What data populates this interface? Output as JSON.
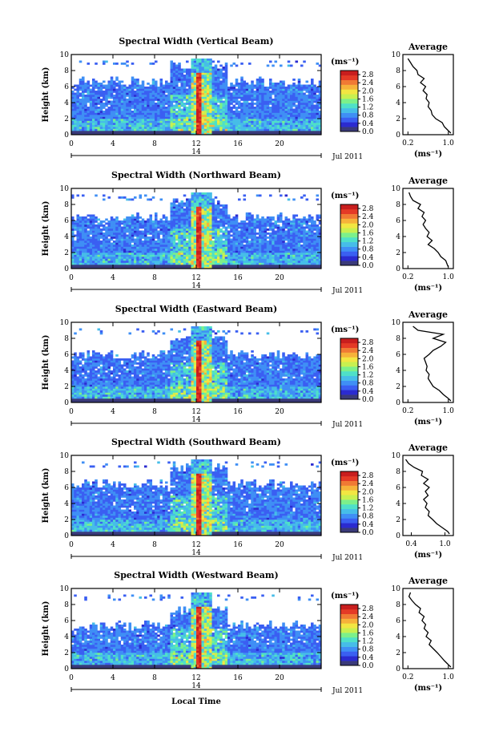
{
  "figure": {
    "xlabel": "Local Time",
    "date_label": "Jul 2011",
    "day_label": "14",
    "unit_label": "(ms⁻¹)",
    "avg_title": "Average"
  },
  "colors": {
    "colormap": [
      "#3a3a7a",
      "#2b2bd0",
      "#3a5ff2",
      "#3f8ff5",
      "#46bde8",
      "#4fe0c8",
      "#7cf08a",
      "#c8f050",
      "#f2e642",
      "#f6b23a",
      "#f07a34",
      "#e43a26",
      "#c81e1e"
    ],
    "bar_bottom": "#3a3a7a"
  },
  "chart_data": [
    {
      "type": "heatmap",
      "title": "Spectral Width (Vertical Beam)",
      "xlabel": "Local Time",
      "ylabel": "Height (km)",
      "xlim": [
        0,
        24
      ],
      "ylim": [
        0,
        10
      ],
      "x_ticks": [
        "0",
        "4",
        "8",
        "12",
        "16",
        "20"
      ],
      "y_ticks": [
        "0",
        "2",
        "4",
        "6",
        "8",
        "10"
      ],
      "colorbar": {
        "label": "(ms⁻¹)",
        "ticks": [
          "0.0",
          "0.4",
          "0.8",
          "1.2",
          "1.6",
          "2.0",
          "2.4",
          "2.8"
        ],
        "range": [
          0,
          3.0
        ]
      },
      "features": {
        "convection_hours": [
          11.5,
          13.5
        ],
        "cloud_top_km": 6.6
      },
      "average": {
        "title": "Average",
        "xlabel": "(ms⁻¹)",
        "xlim": [
          0.1,
          1.1
        ],
        "x_ticks": [
          "0.2",
          "1.0"
        ],
        "y_ticks": [
          "0",
          "2",
          "4",
          "6",
          "8",
          "10"
        ],
        "height_km": [
          0.2,
          0.5,
          1,
          1.5,
          2,
          2.5,
          3,
          3.5,
          4,
          4.5,
          5,
          5.5,
          6,
          6.5,
          7,
          7.5,
          8,
          8.5,
          9,
          9.5
        ],
        "values": [
          1.05,
          1.0,
          0.92,
          0.88,
          0.75,
          0.68,
          0.66,
          0.6,
          0.62,
          0.56,
          0.58,
          0.5,
          0.55,
          0.45,
          0.52,
          0.4,
          0.38,
          0.3,
          0.25,
          0.2
        ]
      }
    },
    {
      "type": "heatmap",
      "title": "Spectral Width (Northward Beam)",
      "xlabel": "Local Time",
      "ylabel": "Height (km)",
      "xlim": [
        0,
        24
      ],
      "ylim": [
        0,
        10
      ],
      "x_ticks": [
        "0",
        "4",
        "8",
        "12",
        "16",
        "20"
      ],
      "y_ticks": [
        "0",
        "2",
        "4",
        "6",
        "8",
        "10"
      ],
      "colorbar": {
        "label": "(ms⁻¹)",
        "ticks": [
          "0.0",
          "0.4",
          "0.8",
          "1.2",
          "1.6",
          "2.0",
          "2.4",
          "2.8"
        ],
        "range": [
          0,
          3.0
        ]
      },
      "features": {
        "convection_hours": [
          11.5,
          13.5
        ],
        "cloud_top_km": 6.4
      },
      "average": {
        "title": "Average",
        "xlabel": "(ms⁻¹)",
        "xlim": [
          0.1,
          1.1
        ],
        "x_ticks": [
          "0.2",
          "1.0"
        ],
        "y_ticks": [
          "0",
          "2",
          "4",
          "6",
          "8",
          "10"
        ],
        "height_km": [
          0.2,
          0.5,
          1,
          1.5,
          2,
          2.5,
          3,
          3.5,
          4,
          4.5,
          5,
          5.5,
          6,
          6.5,
          7,
          7.5,
          8,
          8.5,
          9,
          9.5
        ],
        "values": [
          1.0,
          0.98,
          0.95,
          0.85,
          0.8,
          0.72,
          0.6,
          0.68,
          0.58,
          0.62,
          0.55,
          0.5,
          0.55,
          0.48,
          0.52,
          0.4,
          0.45,
          0.3,
          0.25,
          0.22
        ]
      }
    },
    {
      "type": "heatmap",
      "title": "Spectral Width (Eastward Beam)",
      "xlabel": "Local Time",
      "ylabel": "Height (km)",
      "xlim": [
        0,
        24
      ],
      "ylim": [
        0,
        10
      ],
      "x_ticks": [
        "0",
        "4",
        "8",
        "12",
        "16",
        "20"
      ],
      "y_ticks": [
        "0",
        "2",
        "4",
        "6",
        "8",
        "10"
      ],
      "colorbar": {
        "label": "(ms⁻¹)",
        "ticks": [
          "0.0",
          "0.4",
          "0.8",
          "1.2",
          "1.6",
          "2.0",
          "2.4",
          "2.8"
        ],
        "range": [
          0,
          3.0
        ]
      },
      "features": {
        "convection_hours": [
          11.5,
          13.5
        ],
        "cloud_top_km": 6.0
      },
      "average": {
        "title": "Average",
        "xlabel": "(ms⁻¹)",
        "xlim": [
          0.1,
          1.1
        ],
        "x_ticks": [
          "0.2",
          "1.0"
        ],
        "y_ticks": [
          "0",
          "2",
          "4",
          "6",
          "8",
          "10"
        ],
        "height_km": [
          0.2,
          0.5,
          1,
          1.5,
          2,
          2.5,
          3,
          3.5,
          4,
          4.5,
          5,
          5.5,
          6,
          6.5,
          7,
          7.5,
          8,
          8.5,
          9,
          9.5
        ],
        "values": [
          1.05,
          1.0,
          0.9,
          0.82,
          0.7,
          0.65,
          0.6,
          0.62,
          0.56,
          0.58,
          0.55,
          0.52,
          0.62,
          0.7,
          0.85,
          0.95,
          0.7,
          0.9,
          0.4,
          0.3
        ]
      }
    },
    {
      "type": "heatmap",
      "title": "Spectral Width (Southward Beam)",
      "xlabel": "Local Time",
      "ylabel": "Height (km)",
      "xlim": [
        0,
        24
      ],
      "ylim": [
        0,
        10
      ],
      "x_ticks": [
        "0",
        "4",
        "8",
        "12",
        "16",
        "20"
      ],
      "y_ticks": [
        "0",
        "2",
        "4",
        "6",
        "8",
        "10"
      ],
      "colorbar": {
        "label": "(ms⁻¹)",
        "ticks": [
          "0.0",
          "0.4",
          "0.8",
          "1.2",
          "1.6",
          "2.0",
          "2.4",
          "2.8"
        ],
        "range": [
          0,
          3.0
        ]
      },
      "features": {
        "convection_hours": [
          11.5,
          13.5
        ],
        "cloud_top_km": 6.5
      },
      "average": {
        "title": "Average",
        "xlabel": "(ms⁻¹)",
        "xlim": [
          0.25,
          1.15
        ],
        "x_ticks": [
          "0.4",
          "1.0"
        ],
        "y_ticks": [
          "0",
          "2",
          "4",
          "6",
          "8",
          "10"
        ],
        "height_km": [
          0.2,
          0.5,
          1,
          1.5,
          2,
          2.5,
          3,
          3.5,
          4,
          4.5,
          5,
          5.5,
          6,
          6.5,
          7,
          7.5,
          8,
          8.5,
          9,
          9.5
        ],
        "values": [
          1.08,
          1.05,
          0.95,
          0.85,
          0.78,
          0.7,
          0.72,
          0.65,
          0.68,
          0.62,
          0.7,
          0.65,
          0.72,
          0.62,
          0.7,
          0.58,
          0.6,
          0.45,
          0.35,
          0.3
        ]
      }
    },
    {
      "type": "heatmap",
      "title": "Spectral Width (Westward Beam)",
      "xlabel": "Local Time",
      "ylabel": "Height (km)",
      "xlim": [
        0,
        24
      ],
      "ylim": [
        0,
        10
      ],
      "x_ticks": [
        "0",
        "4",
        "8",
        "12",
        "16",
        "20"
      ],
      "y_ticks": [
        "0",
        "2",
        "4",
        "6",
        "8",
        "10"
      ],
      "colorbar": {
        "label": "(ms⁻¹)",
        "ticks": [
          "0.0",
          "0.4",
          "0.8",
          "1.2",
          "1.6",
          "2.0",
          "2.4",
          "2.8"
        ],
        "range": [
          0,
          3.0
        ]
      },
      "features": {
        "convection_hours": [
          11.5,
          13.5
        ],
        "cloud_top_km": 5.4
      },
      "average": {
        "title": "Average",
        "xlabel": "(ms⁻¹)",
        "xlim": [
          0.1,
          1.1
        ],
        "x_ticks": [
          "0.2",
          "1.0"
        ],
        "y_ticks": [
          "0",
          "2",
          "4",
          "6",
          "8",
          "10"
        ],
        "height_km": [
          0.2,
          0.5,
          1,
          1.5,
          2,
          2.5,
          3,
          3.5,
          4,
          4.5,
          5,
          5.5,
          6,
          6.5,
          7,
          7.5,
          8,
          8.5,
          9,
          9.5
        ],
        "values": [
          1.05,
          1.0,
          0.92,
          0.85,
          0.78,
          0.7,
          0.62,
          0.66,
          0.56,
          0.6,
          0.52,
          0.55,
          0.48,
          0.52,
          0.42,
          0.45,
          0.35,
          0.28,
          0.22,
          0.25
        ]
      }
    }
  ]
}
